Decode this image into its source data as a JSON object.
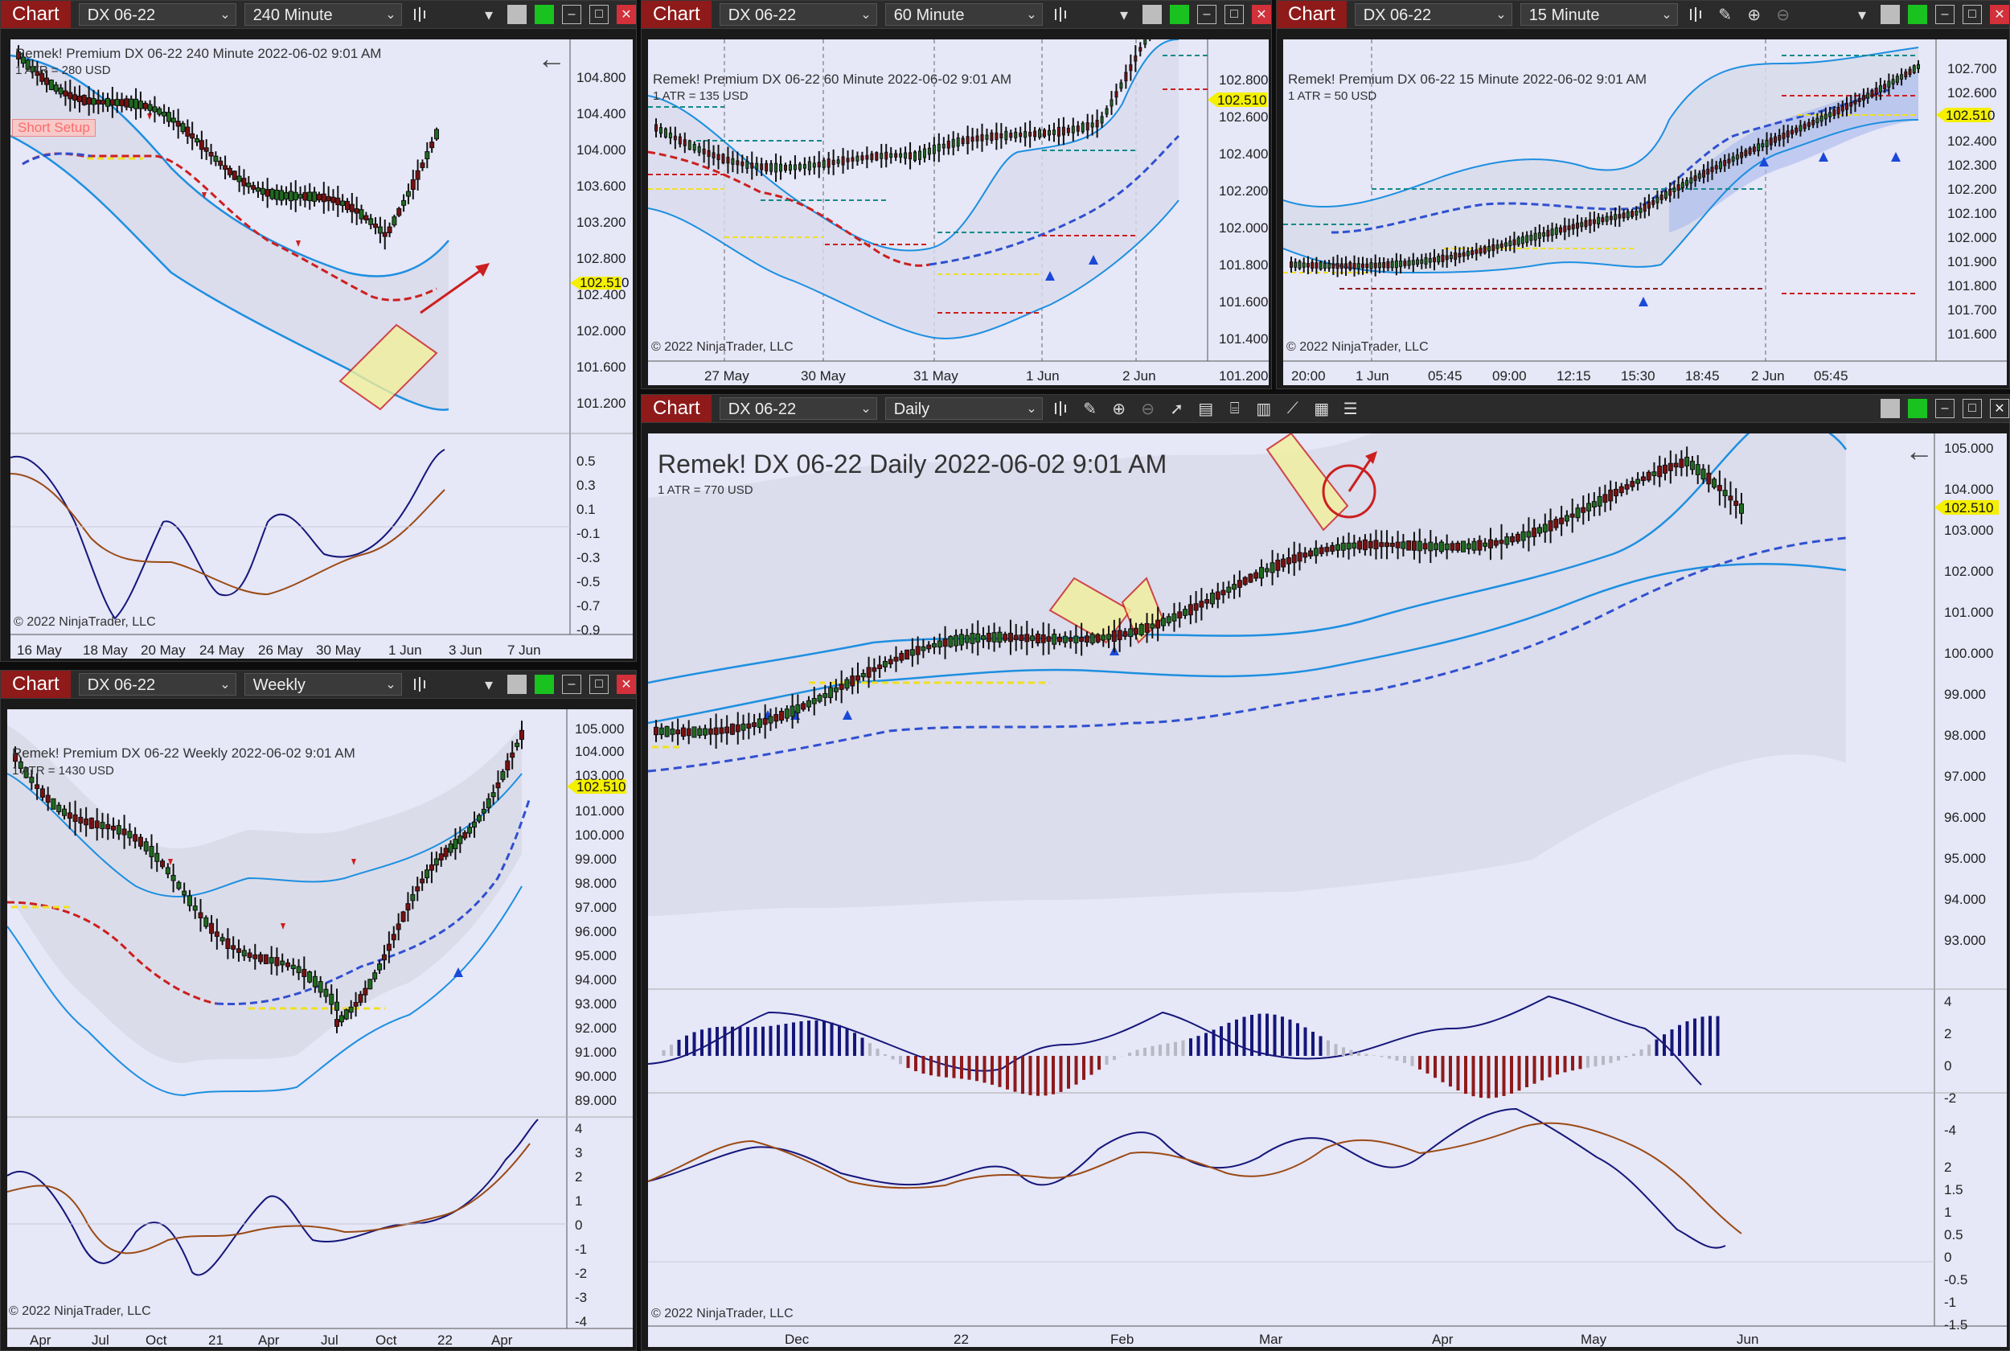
{
  "common": {
    "chart_tab": "Chart",
    "instrument": "DX 06-22",
    "copyright": "© 2022 NinjaTrader, LLC",
    "last_price": "102.510",
    "colors": {
      "plot_bg": "#e6e7f7",
      "band": "#1d8fe0",
      "ma_down": "#cc1f1f",
      "ma_up": "#3050d0",
      "yellow": "#f0e020",
      "price_tag": "#f4f000",
      "osc_fast": "#15167a",
      "osc_slow": "#9a4a15"
    }
  },
  "w240": {
    "interval": "240 Minute",
    "header_line": "Remek!  Premium  DX 06-22  240 Minute  2022-06-02 9:01 AM",
    "atr_line": "1 ATR = 280 USD",
    "badge": "Short Setup",
    "y_ticks": [
      "104.800",
      "104.400",
      "104.000",
      "103.600",
      "103.200",
      "102.800",
      "102.400",
      "102.000",
      "101.600",
      "101.200"
    ],
    "osc_ticks": [
      "0.5",
      "0.3",
      "0.1",
      "-0.1",
      "-0.3",
      "-0.5",
      "-0.7",
      "-0.9"
    ],
    "x_ticks": [
      "16 May",
      "18 May",
      "20 May",
      "24 May",
      "26 May",
      "30 May",
      "1 Jun",
      "3 Jun",
      "7 Jun"
    ]
  },
  "w60": {
    "interval": "60 Minute",
    "header_line": "Remek!  Premium  DX 06-22  60 Minute  2022-06-02 9:01 AM",
    "atr_line": "1 ATR = 135 USD",
    "y_ticks": [
      "102.800",
      "102.600",
      "102.400",
      "102.200",
      "102.000",
      "101.800",
      "101.600",
      "101.400",
      "101.200"
    ],
    "x_ticks": [
      "27 May",
      "30 May",
      "31 May",
      "1 Jun",
      "2 Jun"
    ]
  },
  "w15": {
    "interval": "15 Minute",
    "header_line": "Remek!  Premium  DX 06-22  15 Minute  2022-06-02 9:01 AM",
    "atr_line": "1 ATR = 50 USD",
    "y_ticks": [
      "102.700",
      "102.600",
      "102.500",
      "102.400",
      "102.300",
      "102.200",
      "102.100",
      "102.000",
      "101.900",
      "101.800",
      "101.700",
      "101.600"
    ],
    "x_ticks": [
      "20:00",
      "1 Jun",
      "05:45",
      "09:00",
      "12:15",
      "15:30",
      "18:45",
      "2 Jun",
      "05:45"
    ]
  },
  "wwk": {
    "interval": "Weekly",
    "header_line": "Remek!  Premium  DX 06-22  Weekly  2022-06-02 9:01 AM",
    "atr_line": "1 ATR = 1430 USD",
    "y_ticks": [
      "105.000",
      "104.000",
      "103.000",
      "102.000",
      "101.000",
      "100.000",
      "99.000",
      "98.000",
      "97.000",
      "96.000",
      "95.000",
      "94.000",
      "93.000",
      "92.000",
      "91.000",
      "90.000",
      "89.000"
    ],
    "osc_ticks": [
      "4",
      "3",
      "2",
      "1",
      "0",
      "-1",
      "-2",
      "-3",
      "-4"
    ],
    "x_ticks": [
      "Apr",
      "Jul",
      "Oct",
      "21",
      "Apr",
      "Jul",
      "Oct",
      "22",
      "Apr"
    ]
  },
  "wdaily": {
    "interval": "Daily",
    "header_line": "Remek!  DX 06-22  Daily  2022-06-02 9:01 AM",
    "atr_line": "1 ATR = 770 USD",
    "y_ticks": [
      "105.000",
      "104.000",
      "103.000",
      "102.000",
      "101.000",
      "100.000",
      "99.000",
      "98.000",
      "97.000",
      "96.000",
      "95.000",
      "94.000",
      "93.000"
    ],
    "hist_ticks": [
      "4",
      "2",
      "0",
      "-2",
      "-4"
    ],
    "osc_ticks": [
      "2",
      "1.5",
      "1",
      "0.5",
      "0",
      "-0.5",
      "-1",
      "-1.5"
    ],
    "x_ticks": [
      "Dec",
      "22",
      "Feb",
      "Mar",
      "Apr",
      "May",
      "Jun"
    ]
  }
}
